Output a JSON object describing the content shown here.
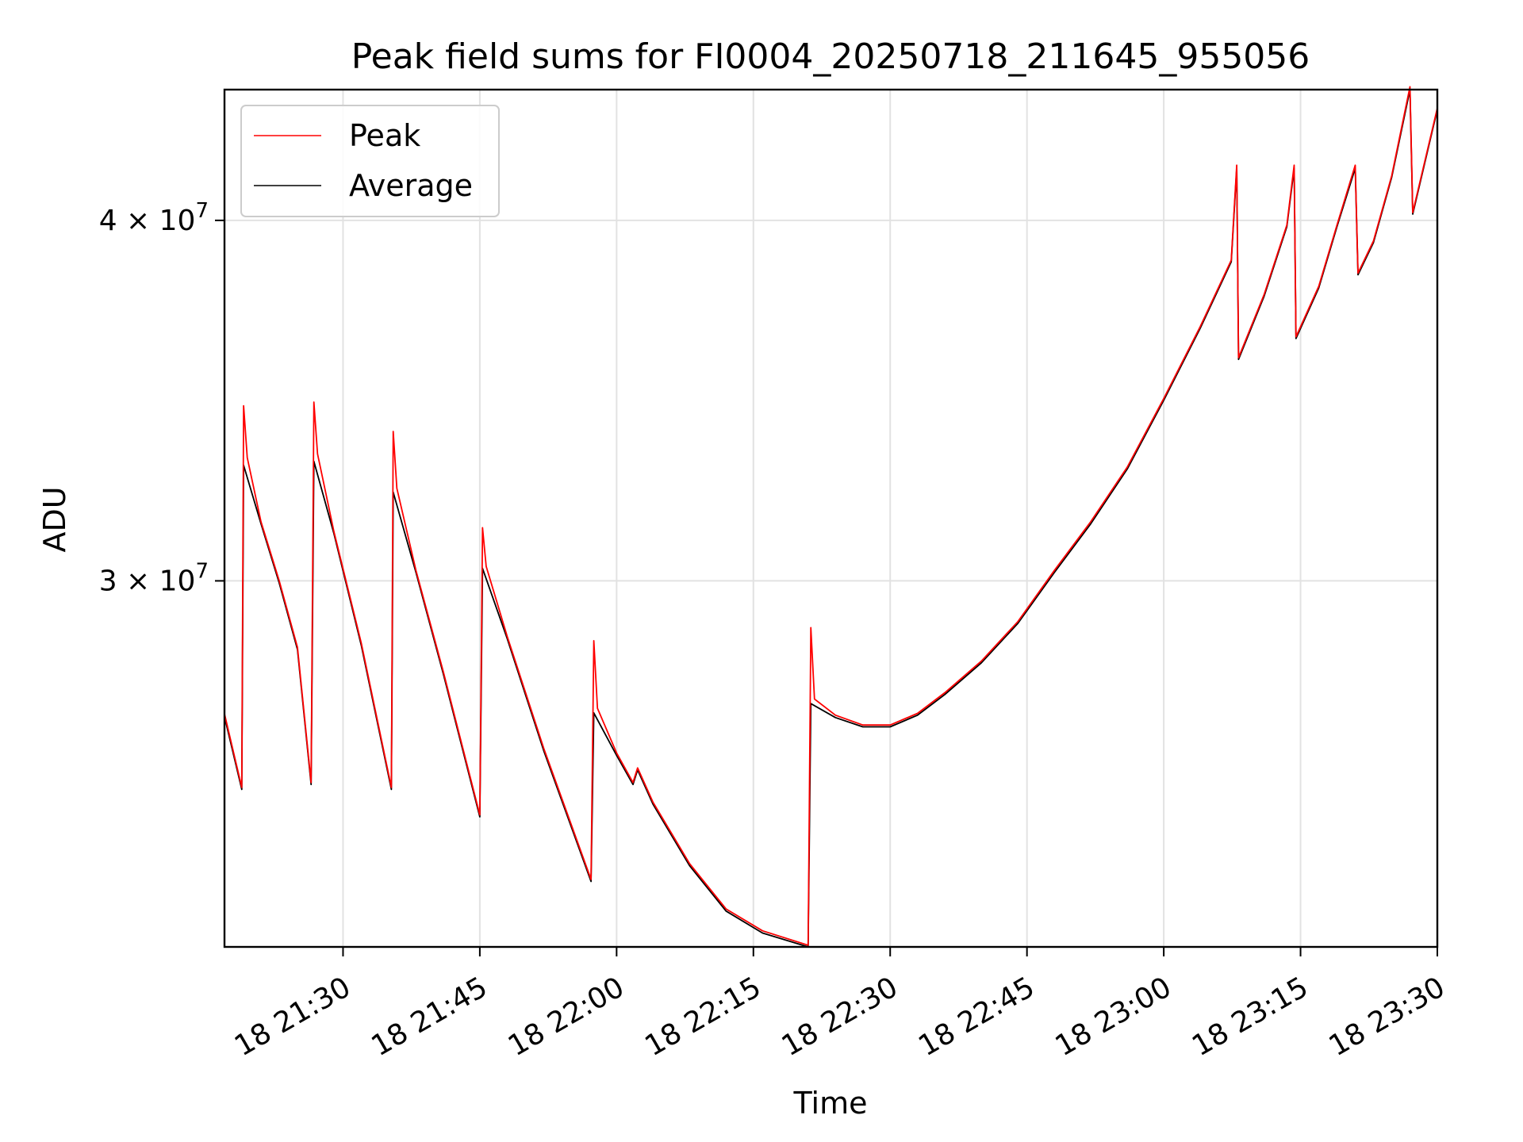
{
  "chart_data": {
    "type": "line",
    "title": "Peak field sums for FI0004_20250718_211645_955056",
    "xlabel": "Time",
    "ylabel": "ADU",
    "x_axis": {
      "kind": "time",
      "range": [
        "2025-07-18 21:17:00",
        "2025-07-18 23:30:00"
      ],
      "ticks": [
        "2025-07-18 21:30",
        "2025-07-18 21:45",
        "2025-07-18 22:00",
        "2025-07-18 22:15",
        "2025-07-18 22:30",
        "2025-07-18 22:45",
        "2025-07-18 23:00",
        "2025-07-18 23:15",
        "2025-07-18 23:30"
      ],
      "tick_labels": [
        "18 21:30",
        "18 21:45",
        "18 22:00",
        "18 22:15",
        "18 22:30",
        "18 22:45",
        "18 23:00",
        "18 23:15",
        "18 23:30"
      ]
    },
    "y_axis": {
      "scale": "log",
      "range": [
        22400000,
        44400000
      ],
      "ticks": [
        30000000,
        40000000
      ],
      "tick_labels": [
        {
          "mantissa": "3",
          "exponent": "7"
        },
        {
          "mantissa": "4",
          "exponent": "7"
        }
      ]
    },
    "grid": true,
    "legend": {
      "position": "top-left",
      "entries": [
        "Peak",
        "Average"
      ]
    },
    "series": [
      {
        "name": "Average",
        "color": "#000000",
        "points": [
          [
            "2025-07-18 21:17:00",
            26920000
          ],
          [
            "2025-07-18 21:18:54",
            25400000
          ],
          [
            "2025-07-18 21:19:06",
            32900000
          ],
          [
            "2025-07-18 21:21:00",
            31400000
          ],
          [
            "2025-07-18 21:23:00",
            29950000
          ],
          [
            "2025-07-18 21:25:00",
            28400000
          ],
          [
            "2025-07-18 21:26:30",
            25500000
          ],
          [
            "2025-07-18 21:26:48",
            33000000
          ],
          [
            "2025-07-18 21:29:00",
            31150000
          ],
          [
            "2025-07-18 21:32:00",
            28500000
          ],
          [
            "2025-07-18 21:35:18",
            25400000
          ],
          [
            "2025-07-18 21:35:30",
            32200000
          ],
          [
            "2025-07-18 21:38:00",
            30200000
          ],
          [
            "2025-07-18 21:41:00",
            27850000
          ],
          [
            "2025-07-18 21:45:00",
            24850000
          ],
          [
            "2025-07-18 21:45:18",
            30300000
          ],
          [
            "2025-07-18 21:48:00",
            28650000
          ],
          [
            "2025-07-18 21:52:00",
            26200000
          ],
          [
            "2025-07-18 21:57:12",
            23600000
          ],
          [
            "2025-07-18 21:57:30",
            27000000
          ],
          [
            "2025-07-18 22:00:00",
            26100000
          ],
          [
            "2025-07-18 22:01:48",
            25500000
          ],
          [
            "2025-07-18 22:02:18",
            25800000
          ],
          [
            "2025-07-18 22:04:00",
            25100000
          ],
          [
            "2025-07-18 22:08:00",
            23900000
          ],
          [
            "2025-07-18 22:12:00",
            23050000
          ],
          [
            "2025-07-18 22:16:00",
            22650000
          ],
          [
            "2025-07-18 22:21:00",
            22400000
          ],
          [
            "2025-07-18 22:21:18",
            27200000
          ],
          [
            "2025-07-18 22:24:00",
            26900000
          ],
          [
            "2025-07-18 22:27:00",
            26700000
          ],
          [
            "2025-07-18 22:30:00",
            26700000
          ],
          [
            "2025-07-18 22:33:00",
            26950000
          ],
          [
            "2025-07-18 22:36:00",
            27400000
          ],
          [
            "2025-07-18 22:40:00",
            28100000
          ],
          [
            "2025-07-18 22:44:00",
            29000000
          ],
          [
            "2025-07-18 22:48:00",
            30200000
          ],
          [
            "2025-07-18 22:52:00",
            31400000
          ],
          [
            "2025-07-18 22:56:00",
            32800000
          ],
          [
            "2025-07-18 23:00:00",
            34650000
          ],
          [
            "2025-07-18 23:04:00",
            36700000
          ],
          [
            "2025-07-18 23:07:24",
            38700000
          ],
          [
            "2025-07-18 23:08:00",
            41700000
          ],
          [
            "2025-07-18 23:08:12",
            35800000
          ],
          [
            "2025-07-18 23:11:00",
            37650000
          ],
          [
            "2025-07-18 23:13:30",
            39800000
          ],
          [
            "2025-07-18 23:14:18",
            41700000
          ],
          [
            "2025-07-18 23:14:30",
            36400000
          ],
          [
            "2025-07-18 23:17:00",
            37900000
          ],
          [
            "2025-07-18 23:19:00",
            39800000
          ],
          [
            "2025-07-18 23:21:00",
            41700000
          ],
          [
            "2025-07-18 23:21:18",
            38300000
          ],
          [
            "2025-07-18 23:23:00",
            39300000
          ],
          [
            "2025-07-18 23:25:00",
            41400000
          ],
          [
            "2025-07-18 23:27:00",
            44400000
          ],
          [
            "2025-07-18 23:27:18",
            40200000
          ],
          [
            "2025-07-18 23:30:00",
            43700000
          ]
        ]
      },
      {
        "name": "Peak",
        "color": "#ff0000",
        "points": [
          [
            "2025-07-18 21:17:00",
            26980000
          ],
          [
            "2025-07-18 21:18:54",
            25440000
          ],
          [
            "2025-07-18 21:19:06",
            34500000
          ],
          [
            "2025-07-18 21:19:30",
            33100000
          ],
          [
            "2025-07-18 21:21:00",
            31450000
          ],
          [
            "2025-07-18 21:23:00",
            30000000
          ],
          [
            "2025-07-18 21:25:00",
            28450000
          ],
          [
            "2025-07-18 21:26:30",
            25540000
          ],
          [
            "2025-07-18 21:26:48",
            34600000
          ],
          [
            "2025-07-18 21:27:12",
            33200000
          ],
          [
            "2025-07-18 21:29:00",
            31200000
          ],
          [
            "2025-07-18 21:32:00",
            28550000
          ],
          [
            "2025-07-18 21:35:18",
            25440000
          ],
          [
            "2025-07-18 21:35:30",
            33800000
          ],
          [
            "2025-07-18 21:35:54",
            32300000
          ],
          [
            "2025-07-18 21:38:00",
            30250000
          ],
          [
            "2025-07-18 21:41:00",
            27900000
          ],
          [
            "2025-07-18 21:45:00",
            24890000
          ],
          [
            "2025-07-18 21:45:18",
            31300000
          ],
          [
            "2025-07-18 21:45:42",
            30350000
          ],
          [
            "2025-07-18 21:48:00",
            28700000
          ],
          [
            "2025-07-18 21:52:00",
            26250000
          ],
          [
            "2025-07-18 21:57:12",
            23640000
          ],
          [
            "2025-07-18 21:57:30",
            28600000
          ],
          [
            "2025-07-18 21:57:54",
            27100000
          ],
          [
            "2025-07-18 22:00:00",
            26150000
          ],
          [
            "2025-07-18 22:01:48",
            25540000
          ],
          [
            "2025-07-18 22:02:18",
            25840000
          ],
          [
            "2025-07-18 22:04:00",
            25140000
          ],
          [
            "2025-07-18 22:08:00",
            23940000
          ],
          [
            "2025-07-18 22:12:00",
            23090000
          ],
          [
            "2025-07-18 22:16:00",
            22690000
          ],
          [
            "2025-07-18 22:21:00",
            22430000
          ],
          [
            "2025-07-18 22:21:18",
            28900000
          ],
          [
            "2025-07-18 22:21:42",
            27300000
          ],
          [
            "2025-07-18 22:24:00",
            26950000
          ],
          [
            "2025-07-18 22:27:00",
            26740000
          ],
          [
            "2025-07-18 22:30:00",
            26740000
          ],
          [
            "2025-07-18 22:33:00",
            26990000
          ],
          [
            "2025-07-18 22:36:00",
            27440000
          ],
          [
            "2025-07-18 22:40:00",
            28140000
          ],
          [
            "2025-07-18 22:44:00",
            29040000
          ],
          [
            "2025-07-18 22:48:00",
            30250000
          ],
          [
            "2025-07-18 22:52:00",
            31450000
          ],
          [
            "2025-07-18 22:56:00",
            32850000
          ],
          [
            "2025-07-18 23:00:00",
            34700000
          ],
          [
            "2025-07-18 23:04:00",
            36750000
          ],
          [
            "2025-07-18 23:07:24",
            38750000
          ],
          [
            "2025-07-18 23:08:00",
            41800000
          ],
          [
            "2025-07-18 23:08:12",
            35850000
          ],
          [
            "2025-07-18 23:11:00",
            37700000
          ],
          [
            "2025-07-18 23:13:30",
            39850000
          ],
          [
            "2025-07-18 23:14:18",
            41800000
          ],
          [
            "2025-07-18 23:14:30",
            36450000
          ],
          [
            "2025-07-18 23:17:00",
            37950000
          ],
          [
            "2025-07-18 23:19:00",
            39850000
          ],
          [
            "2025-07-18 23:21:00",
            41800000
          ],
          [
            "2025-07-18 23:21:18",
            38350000
          ],
          [
            "2025-07-18 23:23:00",
            39350000
          ],
          [
            "2025-07-18 23:25:00",
            41450000
          ],
          [
            "2025-07-18 23:27:00",
            44500000
          ],
          [
            "2025-07-18 23:27:18",
            40250000
          ],
          [
            "2025-07-18 23:30:00",
            43750000
          ]
        ]
      }
    ]
  }
}
